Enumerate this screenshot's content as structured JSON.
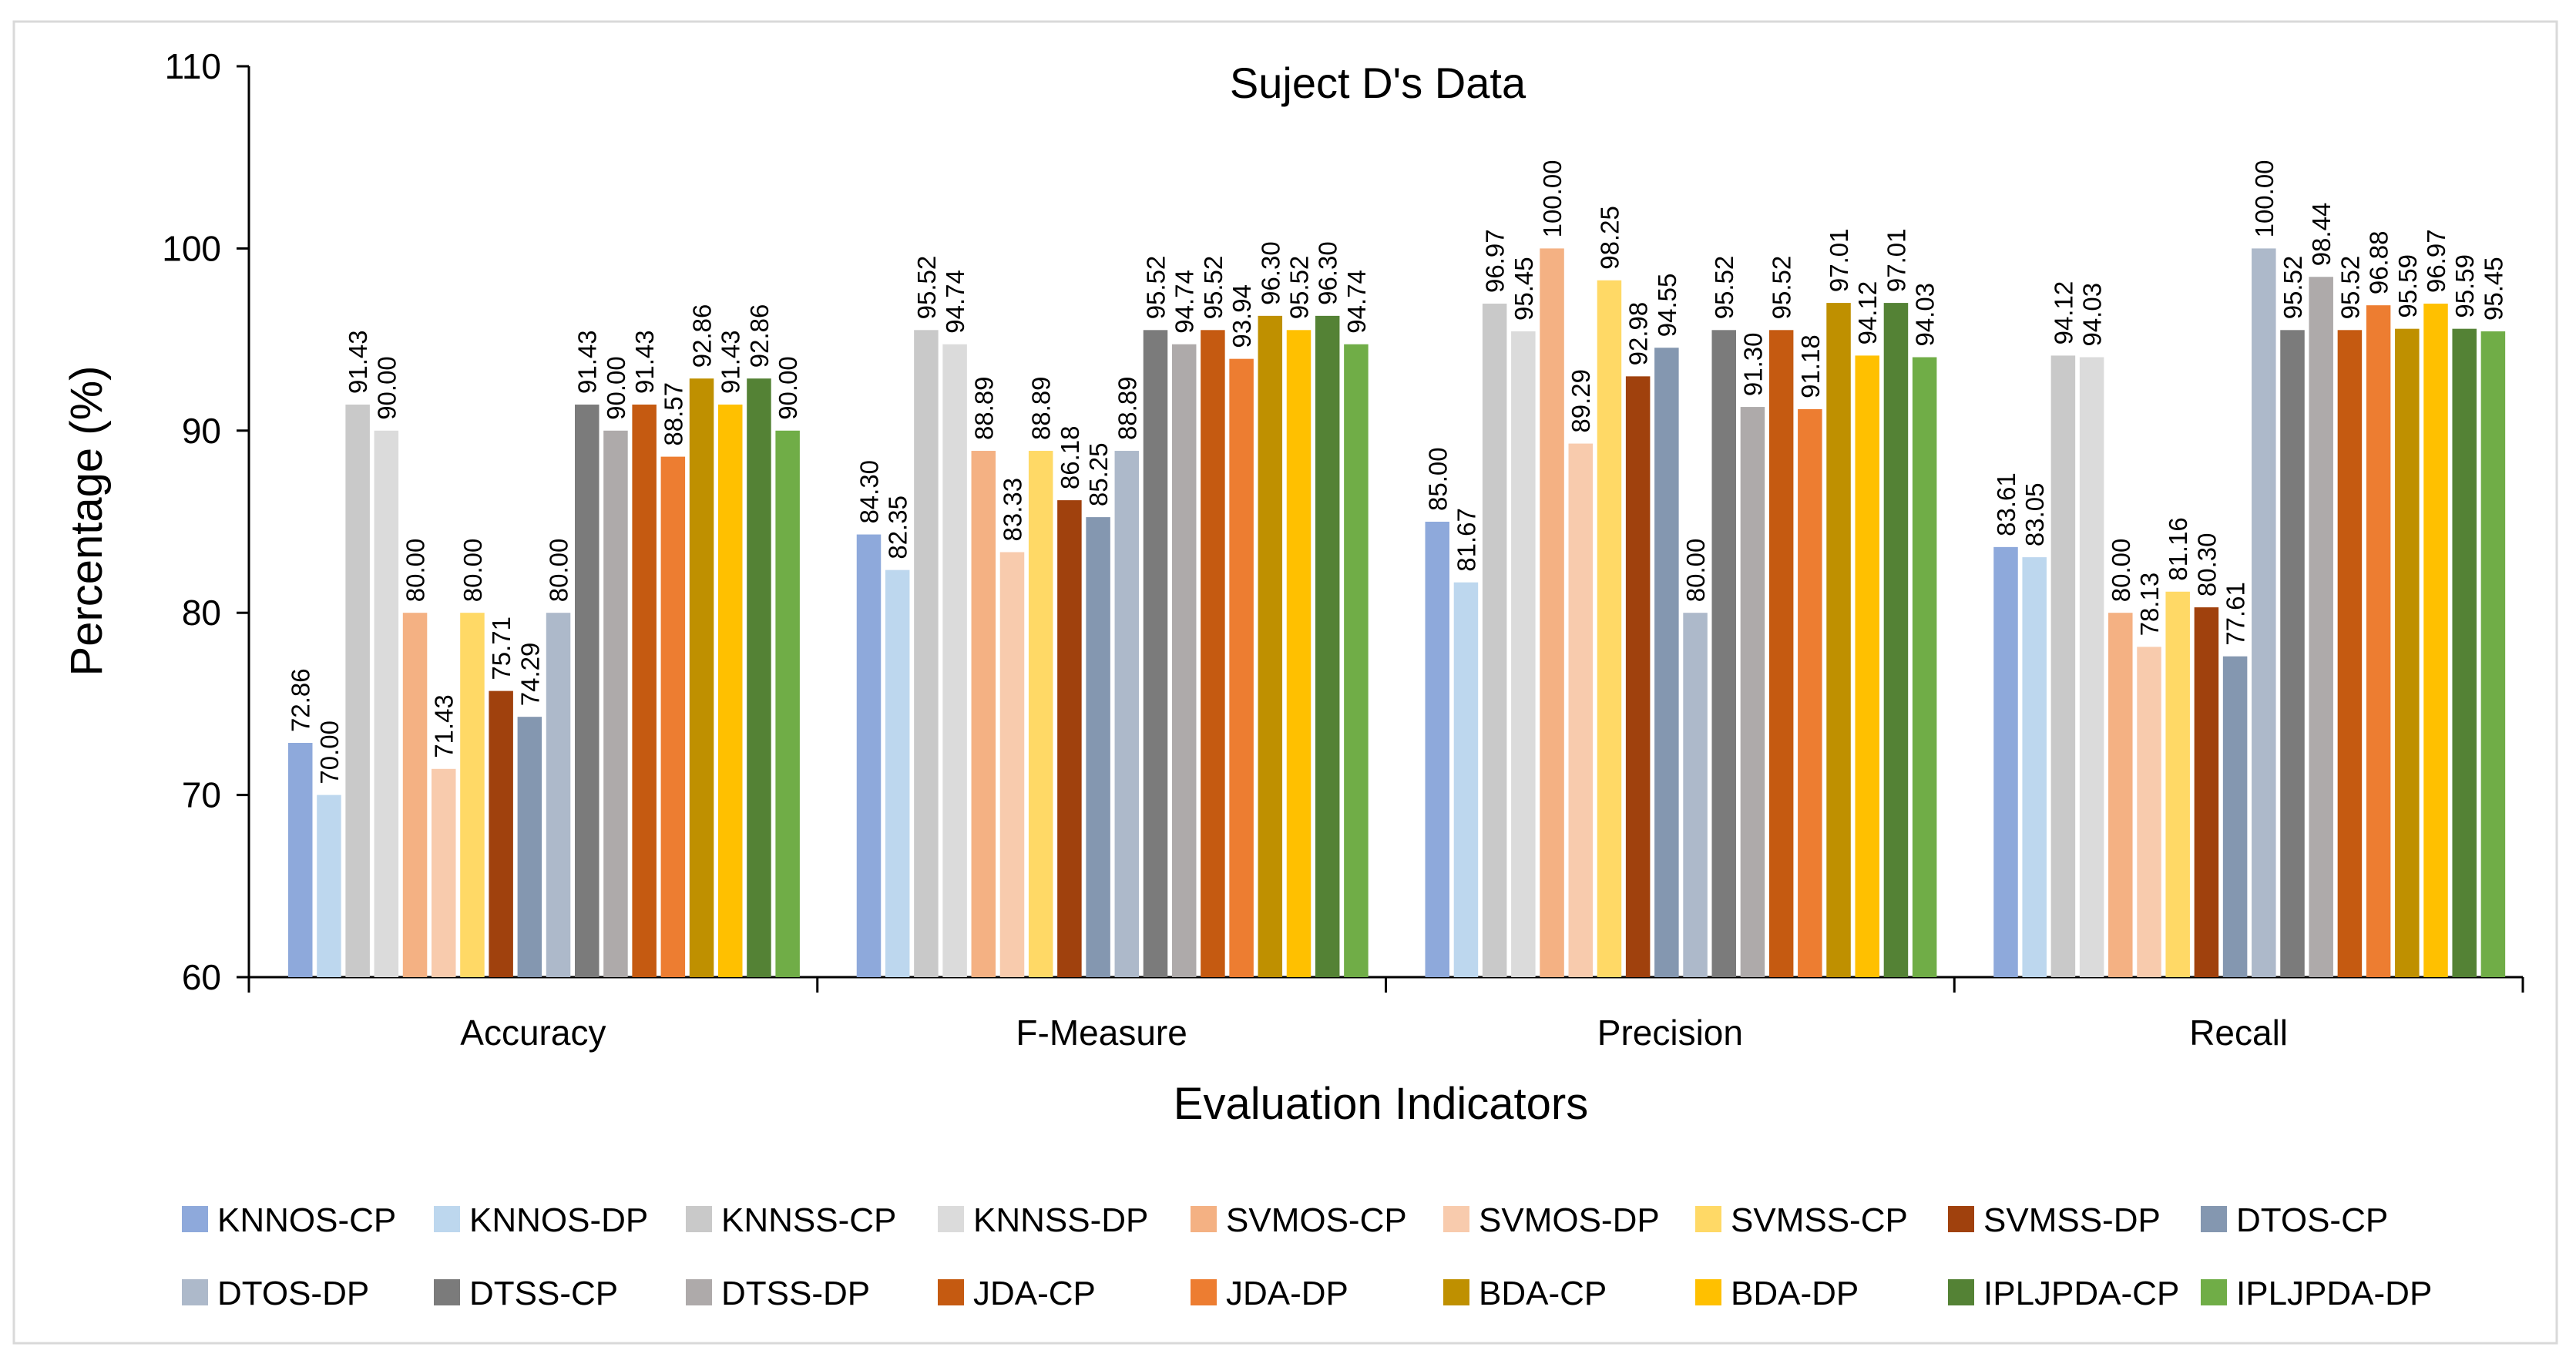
{
  "chart_data": {
    "type": "bar",
    "title": "Suject D's Data",
    "xlabel": "Evaluation Indicators",
    "ylabel": "Percentage (%)",
    "ylim": [
      60,
      110
    ],
    "yticks": [
      60,
      70,
      80,
      90,
      100,
      110
    ],
    "grid": false,
    "legend_position": "bottom",
    "categories": [
      "Accuracy",
      "F-Measure",
      "Precision",
      "Recall"
    ],
    "series": [
      {
        "name": "KNNOS-CP",
        "color": "#8EA9DB",
        "values": [
          72.86,
          84.3,
          85.0,
          83.61
        ],
        "labels": [
          "72.86",
          "84.30",
          "85.00",
          "83.61"
        ]
      },
      {
        "name": "KNNOS-DP",
        "color": "#BDD7EE",
        "values": [
          70.0,
          82.35,
          81.67,
          83.05
        ],
        "labels": [
          "70.00",
          "82.35",
          "81.67",
          "83.05"
        ]
      },
      {
        "name": "KNNSS-CP",
        "color": "#C9C9C9",
        "values": [
          91.43,
          95.52,
          96.97,
          94.12
        ],
        "labels": [
          "91.43",
          "95.52",
          "96.97",
          "94.12"
        ]
      },
      {
        "name": "KNNSS-DP",
        "color": "#DBDBDB",
        "values": [
          90.0,
          94.74,
          95.45,
          94.03
        ],
        "labels": [
          "90.00",
          "94.74",
          "95.45",
          "94.03"
        ]
      },
      {
        "name": "SVMOS-CP",
        "color": "#F4B183",
        "values": [
          80.0,
          88.89,
          100.0,
          80.0
        ],
        "labels": [
          "80.00",
          "88.89",
          "100.00",
          "80.00"
        ]
      },
      {
        "name": "SVMOS-DP",
        "color": "#F8CBAD",
        "values": [
          71.43,
          83.33,
          89.29,
          78.13
        ],
        "labels": [
          "71.43",
          "83.33",
          "89.29",
          "78.13"
        ]
      },
      {
        "name": "SVMSS-CP",
        "color": "#FFD966",
        "values": [
          80.0,
          88.89,
          98.25,
          81.16
        ],
        "labels": [
          "80.00",
          "88.89",
          "98.25",
          "81.16"
        ]
      },
      {
        "name": "SVMSS-DP",
        "color": "#A0410D",
        "values": [
          75.71,
          86.18,
          92.98,
          80.3
        ],
        "labels": [
          "75.71",
          "86.18",
          "92.98",
          "80.30"
        ]
      },
      {
        "name": "DTOS-CP",
        "color": "#8497B0",
        "values": [
          74.29,
          85.25,
          94.55,
          77.61
        ],
        "labels": [
          "74.29",
          "85.25",
          "94.55",
          "77.61"
        ]
      },
      {
        "name": "DTOS-DP",
        "color": "#ADB9CA",
        "values": [
          80.0,
          88.89,
          80.0,
          100.0
        ],
        "labels": [
          "80.00",
          "88.89",
          "80.00",
          "100.00"
        ]
      },
      {
        "name": "DTSS-CP",
        "color": "#7B7B7B",
        "values": [
          91.43,
          95.52,
          95.52,
          95.52
        ],
        "labels": [
          "91.43",
          "95.52",
          "95.52",
          "95.52"
        ]
      },
      {
        "name": "DTSS-DP",
        "color": "#AEAAAA",
        "values": [
          90.0,
          94.74,
          91.3,
          98.44
        ],
        "labels": [
          "90.00",
          "94.74",
          "91.30",
          "98.44"
        ]
      },
      {
        "name": "JDA-CP",
        "color": "#C55A11",
        "values": [
          91.43,
          95.52,
          95.52,
          95.52
        ],
        "labels": [
          "91.43",
          "95.52",
          "95.52",
          "95.52"
        ]
      },
      {
        "name": "JDA-DP",
        "color": "#ED7D31",
        "values": [
          88.57,
          93.94,
          91.18,
          96.88
        ],
        "labels": [
          "88.57",
          "93.94",
          "91.18",
          "96.88"
        ]
      },
      {
        "name": "BDA-CP",
        "color": "#BF9000",
        "values": [
          92.86,
          96.3,
          97.01,
          95.59
        ],
        "labels": [
          "92.86",
          "96.30",
          "97.01",
          "95.59"
        ]
      },
      {
        "name": "BDA-DP",
        "color": "#FFC000",
        "values": [
          91.43,
          95.52,
          94.12,
          96.97
        ],
        "labels": [
          "91.43",
          "95.52",
          "94.12",
          "96.97"
        ]
      },
      {
        "name": "IPLJPDA-CP",
        "color": "#548235",
        "values": [
          92.86,
          96.3,
          97.01,
          95.59
        ],
        "labels": [
          "92.86",
          "96.30",
          "97.01",
          "95.59"
        ]
      },
      {
        "name": "IPLJPDA-DP",
        "color": "#70AD47",
        "values": [
          90.0,
          94.74,
          94.03,
          95.45
        ],
        "labels": [
          "90.00",
          "94.74",
          "94.03",
          "95.45"
        ]
      }
    ]
  }
}
